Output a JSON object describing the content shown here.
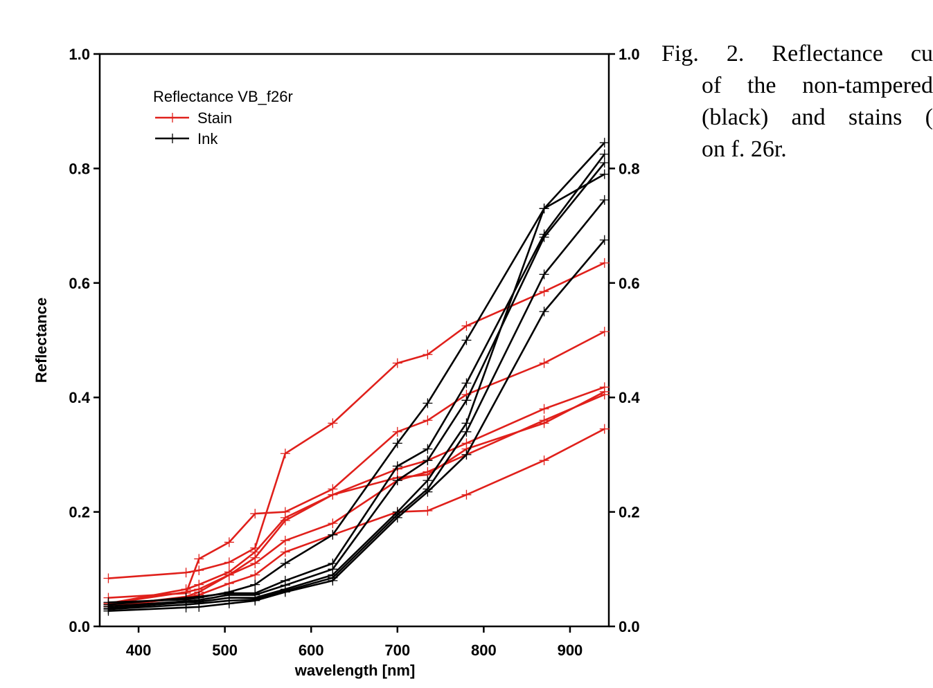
{
  "caption": {
    "lines": [
      "Fig. 2. Reflectance cu",
      "of the non-tampered",
      "(black) and stains (",
      "on f. 26r."
    ]
  },
  "chart_data": {
    "type": "line",
    "title": "",
    "xlabel": "wavelength [nm]",
    "ylabel": "Reflectance",
    "xlim": [
      355,
      945
    ],
    "ylim": [
      0.0,
      1.0
    ],
    "xticks": [
      "400",
      "500",
      "600",
      "700",
      "800",
      "900"
    ],
    "xtick_values": [
      400,
      500,
      600,
      700,
      800,
      900
    ],
    "yticks": [
      "0.0",
      "0.2",
      "0.4",
      "0.6",
      "0.8",
      "1.0"
    ],
    "ytick_values": [
      0.0,
      0.2,
      0.4,
      0.6,
      0.8,
      1.0
    ],
    "mirror_y_axis_right": true,
    "grid": false,
    "legend": {
      "title": "Reflectance VB_f26r",
      "placement": "top-left",
      "entries": [
        {
          "label": "Stain",
          "color": "#e0201b"
        },
        {
          "label": "Ink",
          "color": "#000000"
        }
      ]
    },
    "x": [
      365,
      455,
      470,
      505,
      535,
      570,
      625,
      700,
      735,
      780,
      870,
      940
    ],
    "series": [
      {
        "group": "Stain",
        "color": "#e0201b",
        "values": [
          0.084,
          0.094,
          0.098,
          0.112,
          0.137,
          0.302,
          0.355,
          0.46,
          0.475,
          0.525,
          0.585,
          0.635
        ]
      },
      {
        "group": "Stain",
        "color": "#e0201b",
        "values": [
          0.05,
          0.058,
          0.118,
          0.147,
          0.197,
          0.2,
          0.24,
          0.34,
          0.36,
          0.405,
          0.46,
          0.515
        ]
      },
      {
        "group": "Stain",
        "color": "#e0201b",
        "values": [
          0.04,
          0.065,
          0.073,
          0.095,
          0.13,
          0.19,
          0.23,
          0.275,
          0.29,
          0.32,
          0.38,
          0.418
        ]
      },
      {
        "group": "Stain",
        "color": "#e0201b",
        "values": [
          0.035,
          0.052,
          0.06,
          0.09,
          0.12,
          0.185,
          0.23,
          0.26,
          0.265,
          0.31,
          0.355,
          0.41
        ]
      },
      {
        "group": "Stain",
        "color": "#e0201b",
        "values": [
          0.04,
          0.06,
          0.065,
          0.09,
          0.11,
          0.15,
          0.18,
          0.255,
          0.27,
          0.3,
          0.36,
          0.405
        ]
      },
      {
        "group": "Stain",
        "color": "#e0201b",
        "values": [
          0.035,
          0.05,
          0.055,
          0.075,
          0.09,
          0.13,
          0.16,
          0.2,
          0.202,
          0.23,
          0.29,
          0.345
        ]
      },
      {
        "group": "Ink",
        "color": "#000000",
        "values": [
          0.042,
          0.047,
          0.05,
          0.06,
          0.073,
          0.11,
          0.16,
          0.32,
          0.39,
          0.5,
          0.73,
          0.845
        ]
      },
      {
        "group": "Ink",
        "color": "#000000",
        "values": [
          0.038,
          0.05,
          0.052,
          0.058,
          0.058,
          0.08,
          0.11,
          0.28,
          0.31,
          0.425,
          0.685,
          0.825
        ]
      },
      {
        "group": "Ink",
        "color": "#000000",
        "values": [
          0.035,
          0.044,
          0.046,
          0.055,
          0.055,
          0.072,
          0.1,
          0.255,
          0.29,
          0.395,
          0.68,
          0.81
        ]
      },
      {
        "group": "Ink",
        "color": "#000000",
        "values": [
          0.032,
          0.042,
          0.043,
          0.05,
          0.05,
          0.065,
          0.09,
          0.2,
          0.255,
          0.355,
          0.73,
          0.79
        ]
      },
      {
        "group": "Ink",
        "color": "#000000",
        "values": [
          0.03,
          0.038,
          0.04,
          0.045,
          0.047,
          0.062,
          0.085,
          0.195,
          0.24,
          0.34,
          0.615,
          0.745
        ]
      },
      {
        "group": "Ink",
        "color": "#000000",
        "values": [
          0.027,
          0.033,
          0.034,
          0.04,
          0.045,
          0.06,
          0.08,
          0.19,
          0.235,
          0.3,
          0.55,
          0.675
        ]
      }
    ]
  }
}
